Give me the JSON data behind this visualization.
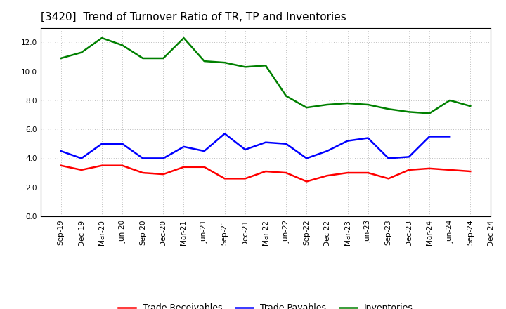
{
  "title": "[3420]  Trend of Turnover Ratio of TR, TP and Inventories",
  "x_labels": [
    "Sep-19",
    "Dec-19",
    "Mar-20",
    "Jun-20",
    "Sep-20",
    "Dec-20",
    "Mar-21",
    "Jun-21",
    "Sep-21",
    "Dec-21",
    "Mar-22",
    "Jun-22",
    "Sep-22",
    "Dec-22",
    "Mar-23",
    "Jun-23",
    "Sep-23",
    "Dec-23",
    "Mar-24",
    "Jun-24",
    "Sep-24",
    "Dec-24"
  ],
  "trade_receivables": [
    3.5,
    3.2,
    3.5,
    3.5,
    3.0,
    2.9,
    3.4,
    3.4,
    2.6,
    2.6,
    3.1,
    3.0,
    2.4,
    2.8,
    3.0,
    3.0,
    2.6,
    3.2,
    3.3,
    3.2,
    3.1,
    null
  ],
  "trade_payables": [
    4.5,
    4.0,
    5.0,
    5.0,
    4.0,
    4.0,
    4.8,
    4.5,
    5.7,
    4.6,
    5.1,
    5.0,
    4.0,
    4.5,
    5.2,
    5.4,
    4.0,
    4.1,
    5.5,
    5.5,
    null,
    null
  ],
  "inventories": [
    10.9,
    11.3,
    12.3,
    11.8,
    10.9,
    10.9,
    12.3,
    10.7,
    10.6,
    10.3,
    10.4,
    8.3,
    7.5,
    7.7,
    7.8,
    7.7,
    7.4,
    7.2,
    7.1,
    8.0,
    7.6,
    null
  ],
  "tr_color": "#ff0000",
  "tp_color": "#0000ff",
  "inv_color": "#008000",
  "legend_labels": [
    "Trade Receivables",
    "Trade Payables",
    "Inventories"
  ],
  "ylim": [
    0.0,
    13.0
  ],
  "yticks": [
    0.0,
    2.0,
    4.0,
    6.0,
    8.0,
    10.0,
    12.0
  ],
  "title_fontsize": 11,
  "legend_fontsize": 9,
  "tick_fontsize": 7.5,
  "line_width": 1.8
}
